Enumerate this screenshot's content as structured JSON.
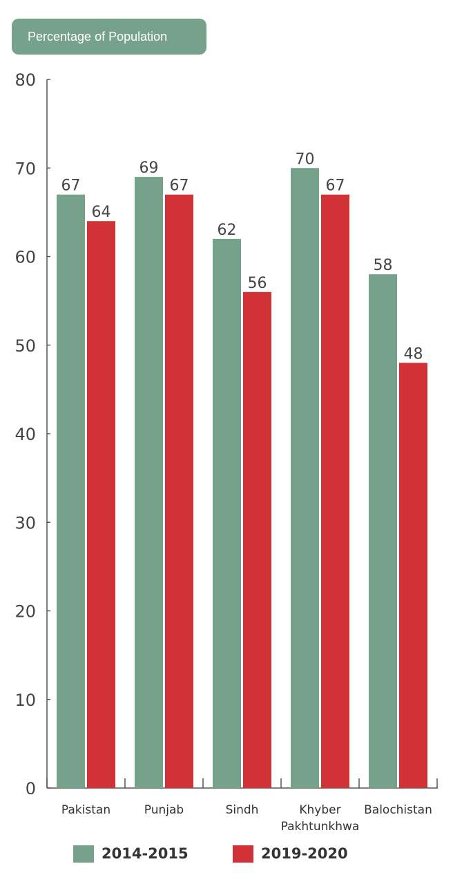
{
  "chart_data": {
    "type": "bar",
    "title": "Percentage of Population",
    "categories": [
      "Pakistan",
      "Punjab",
      "Sindh",
      "Khyber Pakhtunkhwa",
      "Balochistan"
    ],
    "series": [
      {
        "name": "2014-2015",
        "color": "#76a28c",
        "values": [
          67,
          69,
          62,
          70,
          58
        ]
      },
      {
        "name": "2019-2020",
        "color": "#d03236",
        "values": [
          64,
          67,
          56,
          67,
          48
        ]
      }
    ],
    "ylim": [
      0,
      80
    ],
    "yticks": [
      0,
      10,
      20,
      30,
      40,
      50,
      60,
      70,
      80
    ],
    "grid": false,
    "legend": "bottom"
  }
}
